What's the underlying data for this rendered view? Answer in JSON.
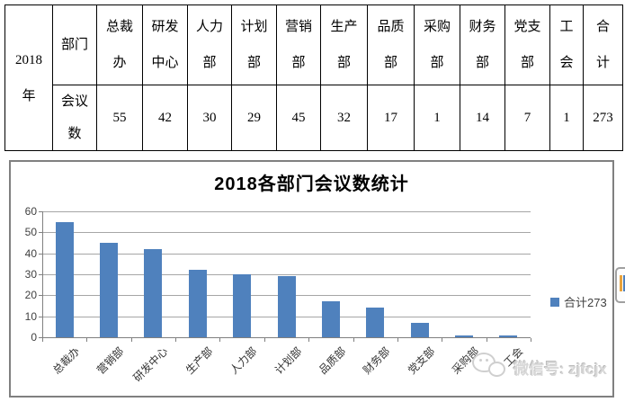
{
  "table": {
    "year_label": "2018年",
    "header_label": "部门",
    "row_label": "会议数",
    "columns": [
      {
        "name": "总裁办",
        "value": "55"
      },
      {
        "name": "研发中心",
        "value": "42"
      },
      {
        "name": "人力部",
        "value": "30"
      },
      {
        "name": "计划部",
        "value": "29"
      },
      {
        "name": "营销部",
        "value": "45"
      },
      {
        "name": "生产部",
        "value": "32"
      },
      {
        "name": "品质部",
        "value": "17"
      },
      {
        "name": "采购部",
        "value": "1"
      },
      {
        "name": "财务部",
        "value": "14"
      },
      {
        "name": "党支部",
        "value": "7"
      },
      {
        "name": "工会",
        "value": "1"
      },
      {
        "name": "合计",
        "value": "273"
      }
    ]
  },
  "chart_data": {
    "type": "bar",
    "title": "2018各部门会议数统计",
    "categories": [
      "总裁办",
      "营销部",
      "研发中心",
      "生产部",
      "人力部",
      "计划部",
      "品质部",
      "财务部",
      "党支部",
      "采购部",
      "工会"
    ],
    "values": [
      55,
      45,
      42,
      32,
      30,
      29,
      17,
      14,
      7,
      1,
      1
    ],
    "series_name": "合计273",
    "legend": {
      "label": "合计273",
      "position": "right"
    },
    "xlabel": "",
    "ylabel": "",
    "ylim": [
      0,
      60
    ],
    "yticks": [
      0,
      10,
      20,
      30,
      40,
      50,
      60
    ],
    "grid": true,
    "bar_color": "#4F81BD",
    "gridline_color": "#a6a6a6",
    "axis_color": "#808080"
  },
  "watermark": {
    "icon": "wechat-icon",
    "text": "微信号: zjfcjx"
  }
}
